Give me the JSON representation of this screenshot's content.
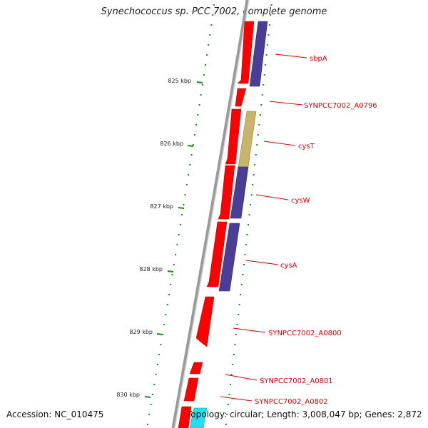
{
  "title": "Synechococcus sp. PCC 7002, complete genome",
  "accession": "Accession: NC_010475",
  "summary": "Topology: circular; Length: 3,008,047 bp; Genes: 2,872",
  "ticks": [
    "825 kbp",
    "826 kbp",
    "827 kbp",
    "828 kbp",
    "829 kbp",
    "830 kbp"
  ],
  "gene_labels": [
    "sbpA",
    "SYNPCC7002_A0796",
    "cysT",
    "cysW",
    "cysA",
    "SYNPCC7002_A0800",
    "SYNPCC7002_A0801",
    "SYNPCC7002_A0802"
  ],
  "colors": {
    "backbone": "#8a8a8a",
    "forward_gene": "#ff0000",
    "cog_blue": "#4a3d96",
    "cog_olive": "#c8b46a",
    "cog_cyan": "#22e0ee",
    "gc_dots": "#1a8a1a",
    "label_text": "#e00000"
  }
}
